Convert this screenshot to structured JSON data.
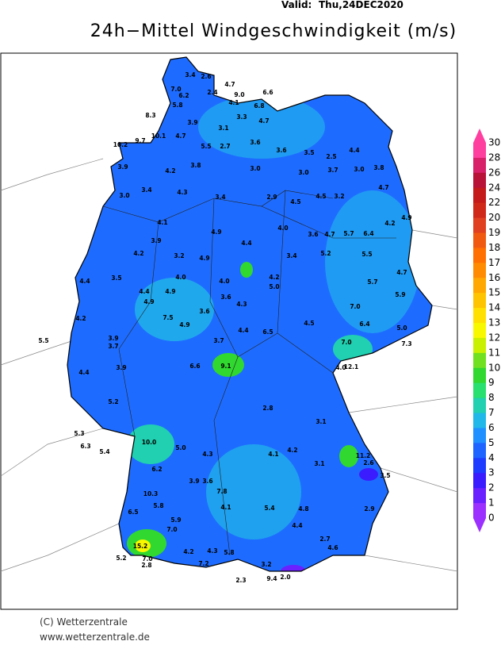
{
  "header": {
    "valid_label": "Valid:",
    "valid_date": "Thu,24DEC2020",
    "title": "24h−Mittel Windgeschwindigkeit (m/s)"
  },
  "colorbar": {
    "ticks": [
      "30",
      "28",
      "26",
      "24",
      "22",
      "20",
      "19",
      "18",
      "17",
      "16",
      "15",
      "14",
      "13",
      "12",
      "11",
      "10",
      "9",
      "8",
      "7",
      "6",
      "5",
      "4",
      "3",
      "2",
      "1",
      "0"
    ],
    "colors": [
      "#ff3fa0",
      "#d8206a",
      "#b81238",
      "#c41a1a",
      "#d02818",
      "#e04020",
      "#f05a10",
      "#ff7000",
      "#ff8c00",
      "#ffa800",
      "#ffc400",
      "#ffe000",
      "#f8f800",
      "#c8f000",
      "#70e020",
      "#30d830",
      "#28e070",
      "#20d0b0",
      "#20b8e8",
      "#1e90ff",
      "#1e64ff",
      "#1e3cff",
      "#3a1cff",
      "#6a20ff",
      "#9b30ff"
    ]
  },
  "stations": [
    "3.4",
    "2.6",
    "4.7",
    "7.0",
    "6.2",
    "2.4",
    "9.0",
    "6.6",
    "4.1",
    "6.8",
    "5.8",
    "8.3",
    "3.9",
    "3.3",
    "4.7",
    "3.1",
    "10.1",
    "9.7",
    "10.2",
    "4.7",
    "5.5",
    "2.7",
    "3.6",
    "3.6",
    "3.5",
    "2.5",
    "4.4",
    "3.9",
    "4.2",
    "3.8",
    "3.0",
    "3.0",
    "3.7",
    "3.0",
    "3.8",
    "3.4",
    "4.3",
    "3.4",
    "2.9",
    "4.5",
    "4.5",
    "3.2",
    "4.7",
    "3.0",
    "4.1",
    "4.9",
    "4.0",
    "3.6",
    "4.7",
    "5.7",
    "6.4",
    "4.2",
    "4.9",
    "3.9",
    "4.2",
    "3.2",
    "4.9",
    "4.4",
    "3.4",
    "5.2",
    "5.5",
    "4.4",
    "3.5",
    "4.0",
    "4.0",
    "4.2",
    "5.0",
    "5.7",
    "4.7",
    "4.4",
    "4.9",
    "3.6",
    "7.0",
    "5.9",
    "4.2",
    "4.9",
    "7.5",
    "4.9",
    "3.6",
    "4.3",
    "4.5",
    "6.4",
    "5.0",
    "5.5",
    "3.9",
    "3.7",
    "6.5",
    "4.4",
    "7.0",
    "7.3",
    "3.7",
    "6.6",
    "9.1",
    "4.0",
    "12.1",
    "3.9",
    "4.4",
    "5.2",
    "2.8",
    "3.1",
    "10.0",
    "5.3",
    "6.3",
    "5.4",
    "5.0",
    "11.2",
    "2.6",
    "4.3",
    "4.1",
    "4.2",
    "3.1",
    "6.2",
    "3.9",
    "3.6",
    "7.8",
    "3.5",
    "10.3",
    "5.8",
    "4.1",
    "5.4",
    "4.8",
    "2.9",
    "6.5",
    "5.9",
    "7.0",
    "4.4",
    "15.2",
    "2.7",
    "4.6",
    "5.2",
    "7.0",
    "4.2",
    "4.3",
    "5.8",
    "3.2",
    "2.8",
    "7.2",
    "2.3",
    "9.4",
    "2.0"
  ],
  "footer": {
    "copyright": "(C) Wetterzentrale",
    "url": "www.wetterzentrale.de"
  }
}
